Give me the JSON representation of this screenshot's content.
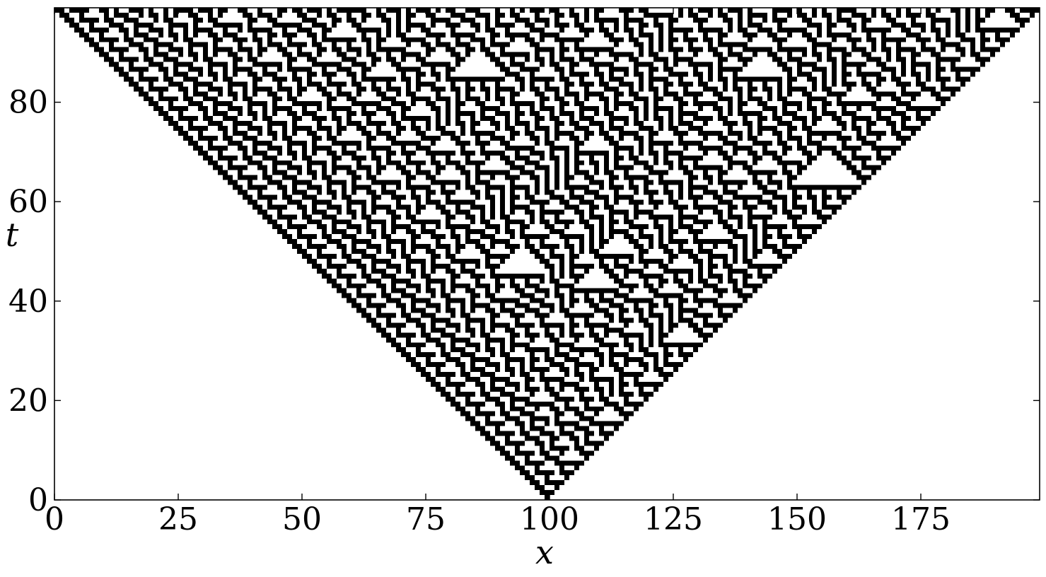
{
  "chart_data": {
    "type": "heatmap",
    "title": "",
    "xlabel": "x",
    "ylabel": "t",
    "xlim": [
      0,
      199
    ],
    "ylim": [
      0,
      99
    ],
    "xticks": [
      0,
      25,
      50,
      75,
      100,
      125,
      150,
      175
    ],
    "yticks": [
      0,
      20,
      40,
      60,
      80
    ],
    "grid": false,
    "legend": "none",
    "cells": {
      "width": 199,
      "steps": 100,
      "rule": 30,
      "initial_live_cell": 99,
      "boundary": "periodic",
      "origin": "bottom"
    },
    "colors": {
      "on": "#000000",
      "off": "#ffffff",
      "axis": "#000000"
    }
  }
}
